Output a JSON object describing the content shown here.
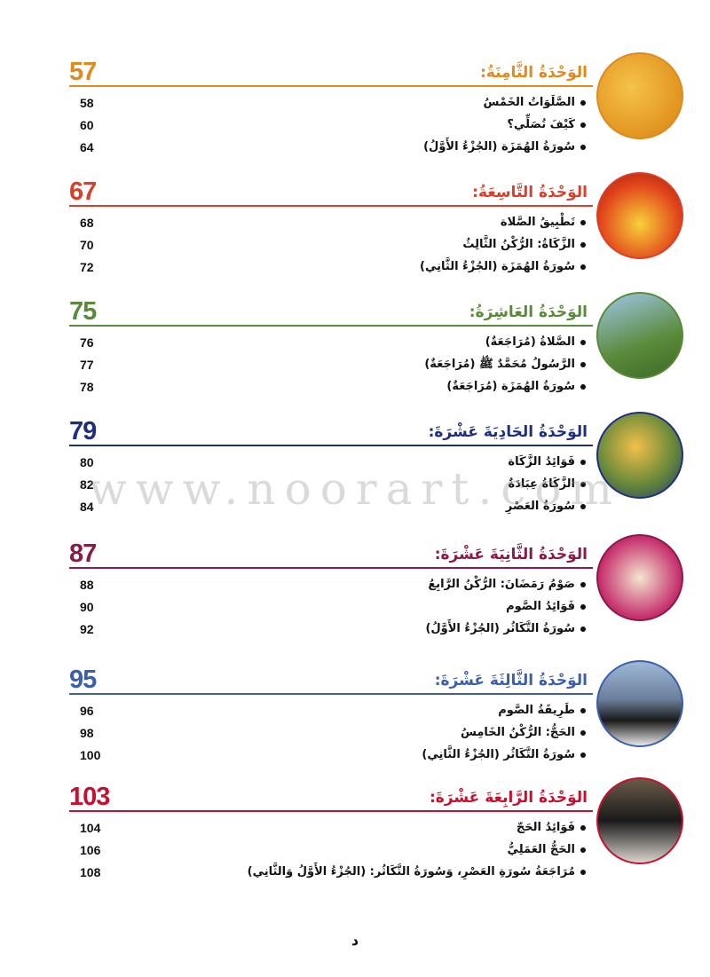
{
  "units": [
    {
      "title": "الوَحْدَةُ الثَّامِنَةُ:",
      "page": "57",
      "color": "#e08a1e",
      "image": "open-book-image",
      "items": [
        {
          "title": "الصَّلَوَاتُ الخَمْسُ",
          "page": "58"
        },
        {
          "title": "كَيْفَ تُصَلِّي؟",
          "page": "60"
        },
        {
          "title": "سُورَةُ الهُمَزَة (الجُزْءُ الأَوَّلُ)",
          "page": "64"
        }
      ]
    },
    {
      "title": "الوَحْدَةُ التَّاسِعَةُ:",
      "page": "67",
      "color": "#d8402a",
      "image": "fire-image",
      "items": [
        {
          "title": "تَطْبِيقُ الصَّلاة",
          "page": "68"
        },
        {
          "title": "الزَّكَاةُ: الرُّكْنُ الثَّالِثُ",
          "page": "70"
        },
        {
          "title": "سُورَةُ الهُمَزَة (الجُزْءُ الثَّانِي)",
          "page": "72"
        }
      ]
    },
    {
      "title": "الوَحْدَةُ العَاشِرَةُ:",
      "page": "75",
      "color": "#5a8a3a",
      "image": "prayer-image",
      "items": [
        {
          "title": "الصَّلاةُ (مُرَاجَعَةٌ)",
          "page": "76"
        },
        {
          "title": "الرَّسُولُ مُحَمَّدٌ ﷺ (مُرَاجَعَةٌ)",
          "page": "77"
        },
        {
          "title": "سُورَةُ الهُمَزَة (مُرَاجَعَةٌ)",
          "page": "78"
        }
      ]
    },
    {
      "title": "الوَحْدَةُ الحَادِيَةَ عَشْرَةَ:",
      "page": "79",
      "color": "#1e2f80",
      "image": "fruit-basket-image",
      "items": [
        {
          "title": "فَوَائِدُ الزَّكَاة",
          "page": "80"
        },
        {
          "title": "الزَّكَاةُ عِبَادَةٌ",
          "page": "82"
        },
        {
          "title": "سُورَةُ العَصْرِ",
          "page": "84"
        }
      ]
    },
    {
      "title": "الوَحْدَةُ الثَّانِيَةَ عَشْرَةَ:",
      "page": "87",
      "color": "#8a1a4a",
      "image": "columns-image",
      "items": [
        {
          "title": "صَوْمُ رَمَضَانَ: الرُّكْنُ الرَّابِعُ",
          "page": "88"
        },
        {
          "title": "فَوَائِدُ الصَّوم",
          "page": "90"
        },
        {
          "title": "سُورَةُ التَّكَاثُر (الجُزْءُ الأَوَّلُ)",
          "page": "92"
        }
      ]
    },
    {
      "title": "الوَحْدَةُ الثَّالِثَةَ عَشْرَةَ:",
      "page": "95",
      "color": "#3a5fae",
      "image": "kaaba-image",
      "items": [
        {
          "title": "طَرِيقَةُ الصَّوم",
          "page": "96"
        },
        {
          "title": "الحَجُّ: الرُّكْنُ الخَامِسُ",
          "page": "98"
        },
        {
          "title": "سُورَةُ التَّكَاثُر (الجُزْءُ الثَّانِي)",
          "page": "100"
        }
      ]
    },
    {
      "title": "الوَحْدَةُ الرَّابِعَةَ عَشْرَةَ:",
      "page": "103",
      "color": "#c8102e",
      "image": "kaaba-crowd-image",
      "items": [
        {
          "title": "فَوَائِدُ الحَجّ",
          "page": "104"
        },
        {
          "title": "الحَجُّ العَمَلِيُّ",
          "page": "106"
        },
        {
          "title": "مُرَاجَعَةُ سُورَةِ العَصْرِ، وَسُورَةُ التَّكَاثُر: (الجُزْءُ الأَوَّلُ وَالثَّانِي)",
          "page": "108"
        }
      ]
    }
  ],
  "watermark": "www.noorart.com",
  "page_letter": "د"
}
